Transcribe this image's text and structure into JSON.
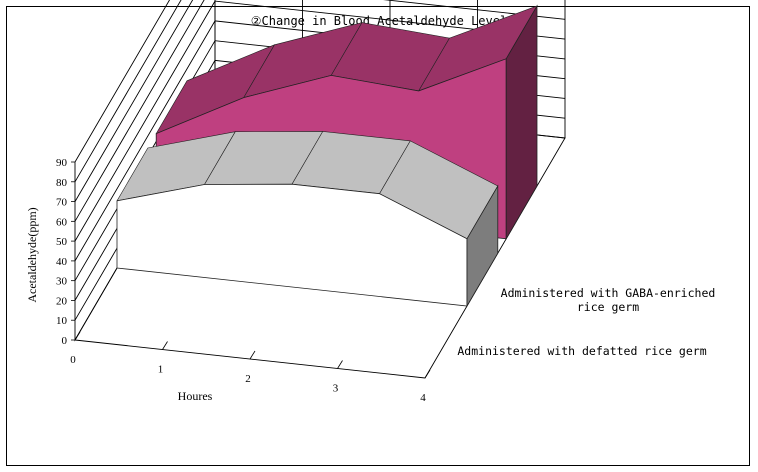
{
  "chart_data": {
    "type": "area",
    "subtype": "3d-area",
    "title": "②Change in Blood Acetaldehyde Level",
    "xlabel": "Houres",
    "ylabel": "Acetaldehyde(ppm)",
    "categories": [
      "0",
      "1",
      "2",
      "3",
      "4"
    ],
    "y_ticks": [
      "0",
      "10",
      "20",
      "30",
      "40",
      "50",
      "60",
      "70",
      "80",
      "90"
    ],
    "ylim": [
      0,
      90
    ],
    "grid": true,
    "series": [
      {
        "name": "Administered with defatted rice germ",
        "name_lines": [
          "Administered with defatted rice germ"
        ],
        "values": [
          34,
          47,
          52,
          52,
          34
        ],
        "color": "#c0c0c0"
      },
      {
        "name": "Administered with GABA-enriched rice germ",
        "name_lines": [
          "Administered with GABA-enriched",
          "rice germ"
        ],
        "values": [
          34,
          57,
          73,
          70,
          91
        ],
        "color": "#993366"
      }
    ]
  }
}
